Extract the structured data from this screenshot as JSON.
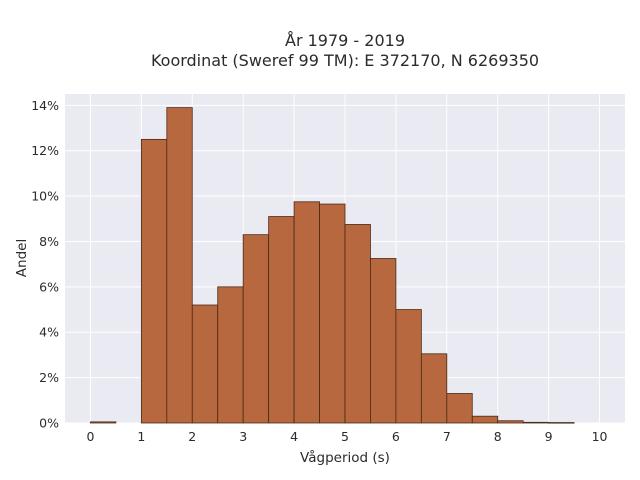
{
  "chart_data": {
    "type": "bar",
    "title": "År 1979 - 2019",
    "subtitle": "Koordinat (Sweref 99 TM): E 372170, N 6269350",
    "xlabel": "Vågperiod (s)",
    "ylabel": "Andel",
    "xlim": [
      -0.5,
      10.5
    ],
    "ylim": [
      0,
      14.5
    ],
    "x_ticks": [
      0,
      1,
      2,
      3,
      4,
      5,
      6,
      7,
      8,
      9,
      10
    ],
    "x_tick_labels": [
      "0",
      "1",
      "2",
      "3",
      "4",
      "5",
      "6",
      "7",
      "8",
      "9",
      "10"
    ],
    "y_ticks": [
      0,
      2,
      4,
      6,
      8,
      10,
      12,
      14
    ],
    "y_tick_labels": [
      "0%",
      "2%",
      "4%",
      "6%",
      "8%",
      "10%",
      "12%",
      "14%"
    ],
    "y_unit": "%",
    "grid": true,
    "bin_width": 0.5,
    "bins": [
      {
        "start": 0.0,
        "value": 0.05
      },
      {
        "start": 0.5,
        "value": 0.0
      },
      {
        "start": 1.0,
        "value": 12.5
      },
      {
        "start": 1.5,
        "value": 13.9
      },
      {
        "start": 2.0,
        "value": 5.2
      },
      {
        "start": 2.5,
        "value": 6.0
      },
      {
        "start": 3.0,
        "value": 8.3
      },
      {
        "start": 3.5,
        "value": 9.1
      },
      {
        "start": 4.0,
        "value": 9.75
      },
      {
        "start": 4.5,
        "value": 9.65
      },
      {
        "start": 5.0,
        "value": 8.75
      },
      {
        "start": 5.5,
        "value": 7.25
      },
      {
        "start": 6.0,
        "value": 5.0
      },
      {
        "start": 6.5,
        "value": 3.05
      },
      {
        "start": 7.0,
        "value": 1.3
      },
      {
        "start": 7.5,
        "value": 0.3
      },
      {
        "start": 8.0,
        "value": 0.1
      },
      {
        "start": 8.5,
        "value": 0.03
      },
      {
        "start": 9.0,
        "value": 0.02
      },
      {
        "start": 9.5,
        "value": 0.0
      }
    ],
    "colors": {
      "bar_fill": "#b7683e",
      "bar_stroke": "#4a2a18",
      "plot_background": "#eaeaf2",
      "grid": "#ffffff",
      "text": "#2b2b2b"
    }
  }
}
